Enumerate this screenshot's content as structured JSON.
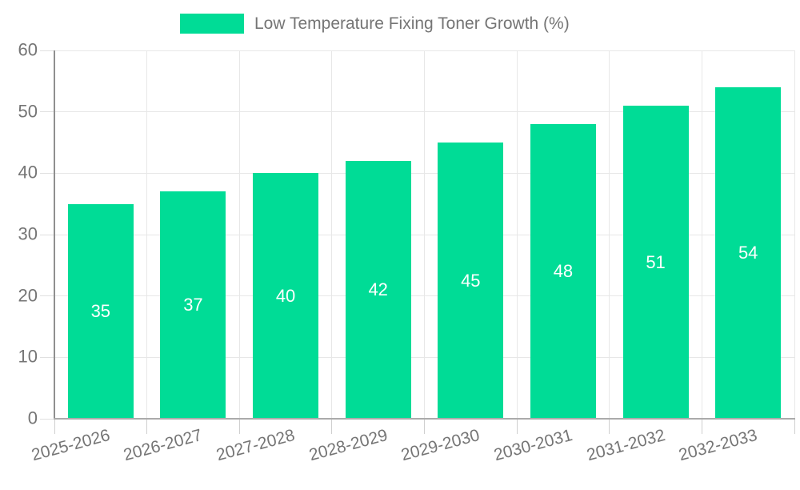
{
  "legend": {
    "label": "Low Temperature Fixing Toner Growth (%)"
  },
  "colors": {
    "bar": "#00DC96",
    "grid": "#e7e7e7",
    "axis_text": "#757575",
    "bar_label_text": "#ffffff"
  },
  "chart_data": {
    "type": "bar",
    "title": "",
    "categories": [
      "2025-2026",
      "2026-2027",
      "2027-2028",
      "2028-2029",
      "2029-2030",
      "2030-2031",
      "2031-2032",
      "2032-2033"
    ],
    "series": [
      {
        "name": "Low Temperature Fixing Toner Growth (%)",
        "values": [
          35,
          37,
          40,
          42,
          45,
          48,
          51,
          54
        ]
      }
    ],
    "bar_value_labels": [
      "35",
      "37",
      "40",
      "42",
      "45",
      "48",
      "51",
      "54"
    ],
    "xlabel": "",
    "ylabel": "",
    "ylim": [
      0,
      60
    ],
    "yticks": [
      0,
      10,
      20,
      30,
      40,
      50,
      60
    ],
    "grid": true,
    "legend_position": "top-center",
    "x_tick_rotation_deg": -15
  }
}
